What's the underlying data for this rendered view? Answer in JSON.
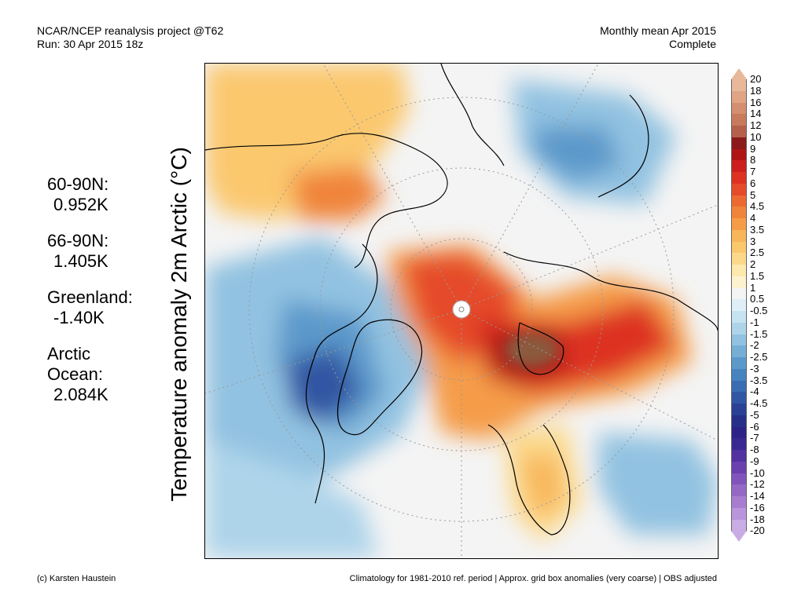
{
  "header": {
    "project": "NCAR/NCEP reanalysis project @T62",
    "run": "Run: 30 Apr 2015 18z",
    "period": "Monthly mean Apr 2015",
    "status": "Complete"
  },
  "title": "Temperature anomaly 2m Arctic (°C)",
  "stats": [
    {
      "label": "60-90N:",
      "value": "0.952K"
    },
    {
      "label": "66-90N:",
      "value": "1.405K"
    },
    {
      "label": "Greenland:",
      "value": "-1.40K"
    },
    {
      "label": "Arctic Ocean:",
      "value": "2.084K"
    }
  ],
  "colorbar": {
    "levels": [
      "20",
      "18",
      "16",
      "14",
      "12",
      "10",
      "9",
      "8",
      "7",
      "6",
      "5",
      "4.5",
      "4",
      "3.5",
      "3",
      "2.5",
      "2",
      "1.5",
      "1",
      "0.5",
      "-0.5",
      "-1",
      "-1.5",
      "-2",
      "-2.5",
      "-3",
      "-3.5",
      "-4",
      "-4.5",
      "-5",
      "-6",
      "-7",
      "-8",
      "-9",
      "-10",
      "-12",
      "-14",
      "-16",
      "-18",
      "-20"
    ],
    "colors": [
      "#e8b89a",
      "#e0a585",
      "#d48f70",
      "#c77a5c",
      "#b5604a",
      "#8b1a1a",
      "#b01515",
      "#cc1f1f",
      "#dd3222",
      "#e54b2a",
      "#ec6a32",
      "#f0843a",
      "#f59c48",
      "#f8b55a",
      "#fbc86e",
      "#fcd98a",
      "#fde8ad",
      "#fdf2cf",
      "#f4f4f4",
      "#deeff8",
      "#c6e3f2",
      "#aed4ea",
      "#92c2e1",
      "#76aed6",
      "#5b99cb",
      "#4683bf",
      "#3a6cb2",
      "#3156a3",
      "#2b4196",
      "#273088",
      "#2b2385",
      "#3a2892",
      "#5231a0",
      "#6a40ae",
      "#8054bb",
      "#9568c6",
      "#a87dd0",
      "#b995db",
      "#caace5"
    ]
  },
  "footer": {
    "credit": "(c) Karsten Haustein",
    "note": "Climatology for 1981-2010 ref. period | Approx. grid box anomalies (very coarse) | OBS adjusted"
  }
}
